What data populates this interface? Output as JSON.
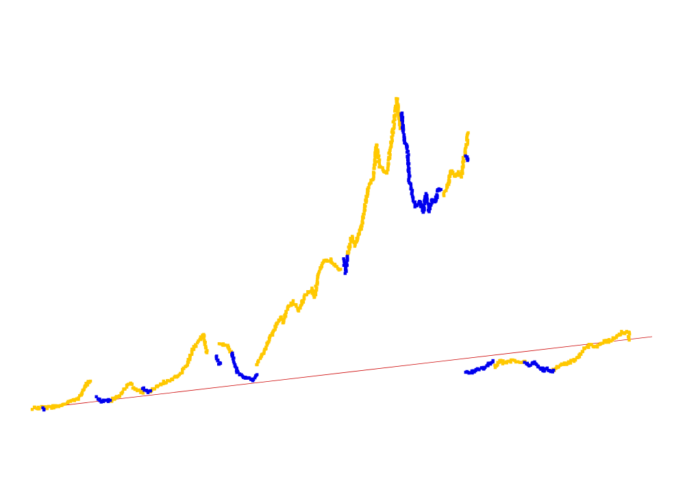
{
  "chart_data": {
    "type": "scatter",
    "title": "",
    "xlabel": "",
    "ylabel": "",
    "xlim": [
      0,
      100
    ],
    "ylim": [
      0,
      100
    ],
    "grid": false,
    "legend": "none",
    "colors": {
      "up": "#FFC800",
      "down": "#0000EE",
      "trend": "#CC0000"
    },
    "series": [
      {
        "color_key": "up",
        "segments": [
          [
            [
              0,
              0.6
            ],
            [
              2,
              0.9
            ],
            [
              4,
              1.2
            ],
            [
              6,
              2.5
            ],
            [
              7,
              3.2
            ],
            [
              8,
              5.0
            ],
            [
              8.5,
              7.5
            ],
            [
              9.3,
              8.6
            ]
          ],
          [
            [
              12.5,
              2.7
            ],
            [
              14,
              4.5
            ],
            [
              15,
              6.7
            ],
            [
              15.8,
              7.9
            ],
            [
              16.5,
              6.2
            ],
            [
              17.8,
              5.1
            ]
          ],
          [
            [
              19,
              5.8
            ],
            [
              21,
              8.1
            ],
            [
              22.5,
              9.0
            ],
            [
              24,
              11.1
            ],
            [
              25,
              13.6
            ],
            [
              26,
              18.6
            ],
            [
              27,
              20.8
            ],
            [
              27.5,
              22.3
            ],
            [
              28.1,
              16.9
            ]
          ],
          [
            [
              30.2,
              19.8
            ],
            [
              31,
              19.0
            ],
            [
              31.5,
              18.8
            ],
            [
              32.1,
              16.8
            ]
          ],
          [
            [
              36.2,
              13.5
            ],
            [
              37,
              16.1
            ],
            [
              38,
              20.3
            ],
            [
              39,
              23.4
            ],
            [
              40,
              27.4
            ],
            [
              40.5,
              25.7
            ],
            [
              41,
              29.6
            ],
            [
              42,
              31.9
            ],
            [
              43,
              29.4
            ],
            [
              44,
              34.0
            ],
            [
              45,
              35.5
            ],
            [
              45.5,
              33.2
            ],
            [
              46.1,
              39.8
            ],
            [
              47,
              43.6
            ],
            [
              48,
              44.1
            ],
            [
              49,
              41.7
            ],
            [
              49.7,
              41.3
            ]
          ],
          [
            [
              50.8,
              45.1
            ],
            [
              51.5,
              51.0
            ],
            [
              52,
              48.3
            ],
            [
              53,
              53.4
            ],
            [
              53.5,
              58.1
            ],
            [
              54.1,
              64.6
            ],
            [
              55,
              68.3
            ],
            [
              55.5,
              77.7
            ],
            [
              56,
              71.4
            ],
            [
              57.1,
              69.0
            ],
            [
              58,
              79.9
            ],
            [
              58.8,
              91.4
            ],
            [
              59.3,
              82.4
            ]
          ],
          [
            [
              66.3,
              63.1
            ],
            [
              67,
              65.8
            ],
            [
              67.5,
              70.4
            ],
            [
              68.2,
              68.6
            ],
            [
              68.7,
              69.6
            ],
            [
              69.2,
              68.1
            ],
            [
              69.5,
              73.1
            ],
            [
              69.9,
              76.0
            ],
            [
              70.3,
              81.2
            ]
          ],
          [
            [
              74.6,
              12.7
            ],
            [
              75.5,
              14.5
            ],
            [
              76,
              14.0
            ],
            [
              77.5,
              14.6
            ],
            [
              79,
              14.2
            ],
            [
              79.5,
              14.3
            ]
          ],
          [
            [
              84.1,
              11.8
            ],
            [
              85,
              13.0
            ],
            [
              86,
              13.7
            ],
            [
              88,
              15.2
            ],
            [
              89,
              18.2
            ],
            [
              90,
              19.1
            ],
            [
              91,
              18.5
            ],
            [
              92,
              20.1
            ],
            [
              93,
              20.3
            ],
            [
              94,
              21.4
            ],
            [
              95,
              22.7
            ],
            [
              96.2,
              23.0
            ],
            [
              96.3,
              20.6
            ]
          ]
        ]
      },
      {
        "color_key": "down",
        "segments": [
          [
            [
              1.7,
              0.7
            ],
            [
              1.8,
              0.4
            ]
          ],
          [
            [
              10.3,
              3.8
            ],
            [
              11,
              2.8
            ],
            [
              12,
              2.9
            ],
            [
              12.5,
              3.0
            ]
          ],
          [
            [
              17.8,
              6.5
            ],
            [
              18.5,
              5.5
            ],
            [
              19.0,
              5.8
            ]
          ],
          [
            [
              29.6,
              15.9
            ],
            [
              30,
              13.5
            ],
            [
              30.3,
              13.8
            ]
          ],
          [
            [
              32.1,
              16.8
            ],
            [
              33,
              11.4
            ],
            [
              34,
              9.6
            ],
            [
              35,
              9.3
            ],
            [
              35.5,
              8.8
            ],
            [
              36.2,
              10.5
            ]
          ],
          [
            [
              50.2,
              44.5
            ],
            [
              50.5,
              40.3
            ],
            [
              50.8,
              45.1
            ]
          ],
          [
            [
              59.5,
              87.2
            ],
            [
              60,
              78.9
            ],
            [
              60.5,
              76.5
            ],
            [
              60.8,
              67.2
            ],
            [
              61.2,
              64.0
            ],
            [
              61.8,
              59.7
            ],
            [
              62.5,
              61.1
            ],
            [
              63,
              57.9
            ],
            [
              63.5,
              63.4
            ],
            [
              64,
              58.3
            ],
            [
              64.5,
              61.6
            ],
            [
              65,
              60.9
            ],
            [
              65.5,
              64.8
            ],
            [
              65.9,
              64.6
            ]
          ],
          [
            [
              70.0,
              74.6
            ],
            [
              70.2,
              73.1
            ]
          ],
          [
            [
              69.9,
              11.1
            ],
            [
              71,
              11.3
            ],
            [
              72,
              12.2
            ],
            [
              73,
              12.3
            ],
            [
              73.6,
              13.5
            ],
            [
              74.3,
              14.6
            ]
          ],
          [
            [
              79.5,
              13.8
            ],
            [
              80,
              13.3
            ],
            [
              81,
              13.9
            ],
            [
              82,
              12.6
            ],
            [
              82.5,
              11.6
            ],
            [
              83,
              12.5
            ],
            [
              83.5,
              11.3
            ],
            [
              84.1,
              11.8
            ]
          ]
        ]
      }
    ],
    "trend_line": [
      [
        0,
        0.5
      ],
      [
        100,
        21.6
      ]
    ]
  }
}
